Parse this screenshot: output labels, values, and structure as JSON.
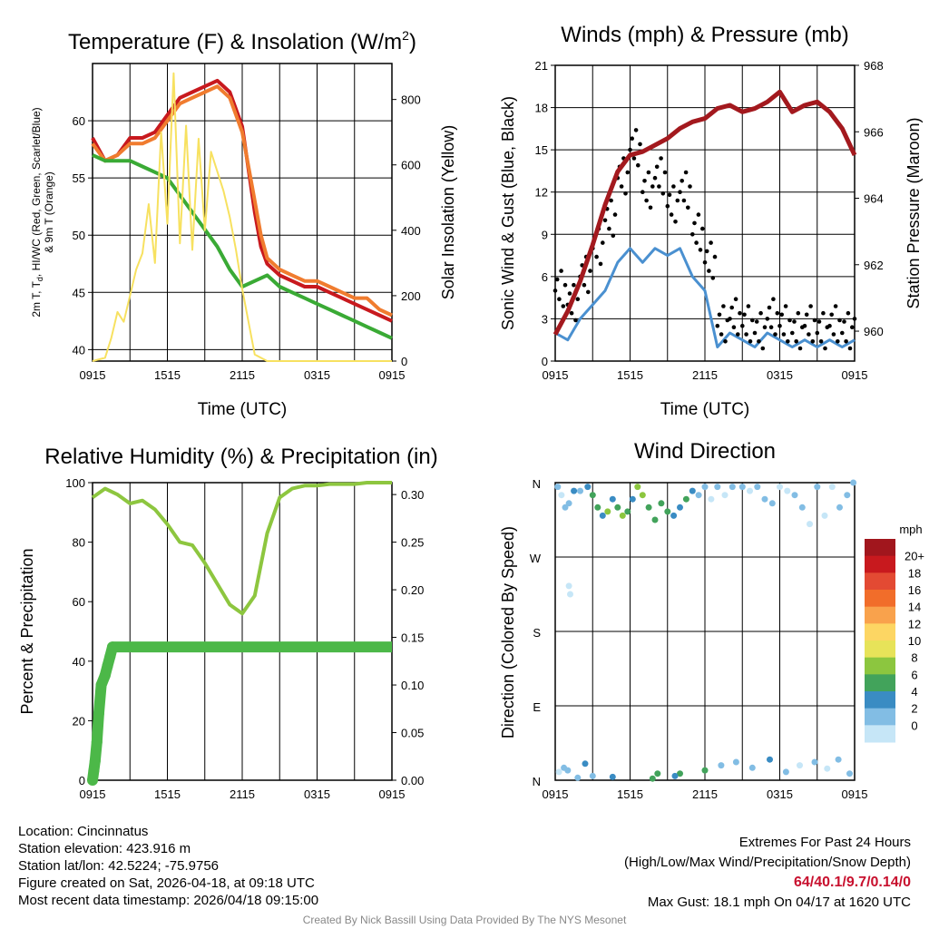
{
  "chart_data": [
    {
      "type": "line",
      "title": "Temperature (F) & Insolation (W/m",
      "title_superscript": "2",
      "title_close": ")",
      "xlabel": "Time (UTC)",
      "ylabel_left_lines": [
        "2m T, T",
        "d",
        ", HI/WC (Red, Green, Scarlet/Blue)",
        "& 9m T (Orange)"
      ],
      "ylabel_right": "Solar Insolation (Yellow)",
      "x_ticks": [
        "0915",
        "1515",
        "2115",
        "0315",
        "0915"
      ],
      "ylim": [
        39,
        65
      ],
      "y_ticks": [
        40,
        45,
        50,
        55,
        60
      ],
      "y2lim": [
        0,
        910
      ],
      "y2_ticks": [
        0,
        200,
        400,
        600,
        800
      ],
      "series": [
        {
          "name": "2m T",
          "color": "#c8191e",
          "axis": "left",
          "x": [
            0,
            1,
            2,
            3,
            4,
            5,
            6,
            7,
            8,
            9,
            10,
            11,
            12,
            13,
            13.5,
            14,
            15,
            16,
            17,
            18,
            19,
            20,
            21,
            22,
            23,
            24
          ],
          "y": [
            58.5,
            56.5,
            57,
            58.5,
            58.5,
            59,
            60.5,
            62,
            62.5,
            63,
            63.5,
            62.5,
            59.5,
            52,
            49,
            47.5,
            46.5,
            46,
            45.5,
            45.5,
            45,
            44.5,
            44,
            43.5,
            43,
            42.5
          ]
        },
        {
          "name": "9m T",
          "color": "#f07c2f",
          "axis": "left",
          "x": [
            0,
            1,
            2,
            3,
            4,
            5,
            6,
            7,
            8,
            9,
            10,
            11,
            12,
            13,
            13.5,
            14,
            15,
            16,
            17,
            18,
            19,
            20,
            21,
            22,
            23,
            24
          ],
          "y": [
            58,
            56.5,
            57,
            58,
            58,
            58.5,
            60,
            61.5,
            62,
            62.5,
            63,
            62,
            59,
            53,
            50,
            48,
            47,
            46.5,
            46,
            46,
            45.5,
            45,
            44.5,
            44.5,
            43.5,
            43
          ]
        },
        {
          "name": "Td",
          "color": "#3aaa35",
          "axis": "left",
          "x": [
            0,
            1,
            2,
            3,
            4,
            5,
            6,
            7,
            8,
            9,
            10,
            11,
            12,
            13,
            14,
            15,
            16,
            17,
            18,
            19,
            20,
            21,
            22,
            23,
            24
          ],
          "y": [
            57,
            56.5,
            56.5,
            56.5,
            56,
            55.5,
            55,
            53.5,
            52,
            50.5,
            49,
            47,
            45.5,
            46,
            46.5,
            45.5,
            45,
            44.5,
            44,
            43.5,
            43,
            42.5,
            42,
            41.5,
            41
          ]
        },
        {
          "name": "Solar Insolation",
          "color": "#f7e160",
          "axis": "right",
          "x": [
            0,
            1,
            1.5,
            2,
            2.5,
            3,
            3.5,
            4,
            4.5,
            5,
            5.5,
            6,
            6.5,
            7,
            7.5,
            8,
            8.5,
            9,
            9.5,
            10,
            10.5,
            11,
            11.5,
            12,
            12.5,
            13,
            14,
            24
          ],
          "y": [
            0,
            10,
            70,
            150,
            120,
            200,
            280,
            330,
            480,
            300,
            700,
            420,
            880,
            360,
            720,
            340,
            680,
            400,
            640,
            580,
            520,
            440,
            340,
            220,
            120,
            20,
            0,
            0
          ]
        }
      ]
    },
    {
      "type": "line",
      "title": "Winds (mph) & Pressure (mb)",
      "xlabel": "Time (UTC)",
      "ylabel_left": "Sonic Wind & Gust (Blue, Black)",
      "ylabel_right": "Station Pressure (Maroon)",
      "x_ticks": [
        "0915",
        "1515",
        "2115",
        "0315",
        "0915"
      ],
      "ylim": [
        0,
        21
      ],
      "y_ticks": [
        0,
        3,
        6,
        9,
        12,
        15,
        18,
        21
      ],
      "y2lim": [
        959.1,
        968
      ],
      "y2_ticks": [
        960,
        962,
        964,
        966,
        968
      ],
      "series": [
        {
          "name": "Sonic Wind",
          "color": "#4a90d0",
          "axis": "left",
          "x": [
            0,
            1,
            2,
            3,
            4,
            5,
            6,
            7,
            8,
            9,
            10,
            11,
            12,
            13,
            14,
            15,
            16,
            17,
            18,
            19,
            20,
            21,
            22,
            23,
            24
          ],
          "y": [
            2,
            1.5,
            3,
            4,
            5,
            7,
            8,
            7,
            8,
            7.5,
            8,
            6,
            5,
            1,
            2,
            1.5,
            1,
            2,
            1.5,
            1,
            1.5,
            1,
            1.5,
            1,
            1.5
          ]
        },
        {
          "name": "Gust",
          "color": "#000000",
          "axis": "left",
          "x": [
            0,
            1,
            2,
            3,
            4,
            5,
            6,
            7,
            8,
            9,
            10,
            11,
            12,
            13,
            14,
            15,
            16,
            17,
            18,
            19,
            20,
            21,
            22,
            23,
            24
          ],
          "y": [
            5,
            4,
            6,
            8,
            10,
            13,
            15,
            12,
            13,
            11,
            12,
            9,
            7,
            2.5,
            3,
            2.5,
            2,
            3,
            2.5,
            2,
            2.5,
            2,
            2.5,
            2,
            3
          ]
        },
        {
          "name": "Station Pressure",
          "color": "#a3191e",
          "axis": "right",
          "x": [
            0,
            1,
            2,
            3,
            4,
            5,
            6,
            7,
            8,
            9,
            10,
            11,
            12,
            13,
            14,
            15,
            16,
            17,
            18,
            19,
            20,
            21,
            22,
            23,
            24
          ],
          "y": [
            959.9,
            960.6,
            961.5,
            962.6,
            963.8,
            964.8,
            965.3,
            965.4,
            965.6,
            965.8,
            966.1,
            966.3,
            966.4,
            966.7,
            966.8,
            966.6,
            966.7,
            966.9,
            967.2,
            966.6,
            966.8,
            966.9,
            966.6,
            966.1,
            965.3
          ]
        }
      ]
    },
    {
      "type": "line",
      "title": "Relative Humidity (%) & Precipitation (in)",
      "xlabel": "",
      "ylabel_left": "Percent & Precipitation",
      "x_ticks": [
        "0915",
        "1515",
        "2115",
        "0315",
        "0915"
      ],
      "ylim": [
        0,
        100
      ],
      "y_ticks": [
        0,
        20,
        40,
        60,
        80,
        100
      ],
      "y2lim": [
        0,
        0.3125
      ],
      "y2_ticks": [
        "0.00",
        "0.05",
        "0.10",
        "0.15",
        "0.20",
        "0.25",
        "0.30"
      ],
      "series": [
        {
          "name": "Relative Humidity",
          "color": "#8dc63f",
          "axis": "left",
          "x": [
            0,
            1,
            2,
            3,
            4,
            5,
            6,
            7,
            8,
            9,
            10,
            11,
            12,
            13,
            14,
            15,
            16,
            17,
            18,
            19,
            20,
            21,
            22,
            23,
            24
          ],
          "y": [
            95,
            98,
            96,
            93,
            94,
            91,
            86,
            80,
            79,
            73,
            66,
            59,
            56,
            62,
            83,
            95,
            98,
            99,
            99,
            99.5,
            99.5,
            99.5,
            100,
            100,
            100
          ]
        },
        {
          "name": "Precipitation",
          "color": "#4cb848",
          "axis": "right",
          "x": [
            0,
            0.1,
            0.2,
            0.35,
            0.5,
            0.7,
            1.0,
            1.2,
            1.4,
            1.6,
            24
          ],
          "y": [
            0,
            0.01,
            0.02,
            0.04,
            0.07,
            0.1,
            0.11,
            0.12,
            0.13,
            0.14,
            0.14
          ]
        }
      ]
    },
    {
      "type": "scatter",
      "title": "Wind Direction",
      "ylabel_left": "Direction (Colored By Speed)",
      "x_ticks": [
        "0915",
        "1515",
        "2115",
        "0315",
        "0915"
      ],
      "y_ticks": [
        "N",
        "E",
        "S",
        "W",
        "N"
      ],
      "ylim": [
        0,
        360
      ],
      "colorbar_title": "mph",
      "colorbar_labels": [
        "20+",
        "18",
        "16",
        "14",
        "12",
        "10",
        "8",
        "6",
        "4",
        "2",
        "0"
      ],
      "colorbar_colors": [
        "#a1161d",
        "#c8191e",
        "#e34a33",
        "#f16d2a",
        "#f9a24c",
        "#fdd663",
        "#e7e359",
        "#8cc63f",
        "#42a35b",
        "#3a8cc3",
        "#82bde4",
        "#c6e6f7"
      ],
      "points": {
        "x": [
          0.2,
          0.5,
          0.8,
          1.1,
          1.5,
          2,
          2.6,
          3,
          3.4,
          3.8,
          4.2,
          4.6,
          5,
          5.4,
          5.8,
          6.2,
          6.6,
          7,
          7.5,
          8,
          8.5,
          9,
          9.5,
          10,
          10.5,
          11,
          11.5,
          12,
          12.5,
          13,
          13.6,
          14.2,
          15,
          15.6,
          16.2,
          16.8,
          17.4,
          18,
          18.6,
          19.2,
          19.8,
          20.4,
          21,
          21.6,
          22.2,
          22.8,
          23.4,
          23.9,
          1,
          3,
          10,
          12,
          0.3,
          0.7,
          1.8,
          2.4,
          4.6,
          7.8,
          8.2,
          9.6,
          13.3,
          14.5,
          15.8,
          17.2,
          18.5,
          19.6,
          20.8,
          21.8,
          22.7,
          23.6,
          1.1,
          1.2
        ],
        "y": [
          355,
          345,
          330,
          335,
          350,
          350,
          355,
          345,
          330,
          320,
          325,
          340,
          330,
          320,
          325,
          340,
          355,
          345,
          330,
          315,
          335,
          325,
          320,
          330,
          340,
          350,
          345,
          355,
          340,
          355,
          345,
          355,
          355,
          350,
          355,
          340,
          335,
          355,
          350,
          345,
          330,
          310,
          355,
          320,
          355,
          330,
          345,
          360,
          12,
          5,
          8,
          12,
          10,
          15,
          3,
          20,
          4,
          2,
          8,
          5,
          18,
          22,
          15,
          25,
          10,
          18,
          22,
          14,
          25,
          8,
          235,
          225
        ],
        "speed": [
          2,
          1,
          3,
          2,
          4,
          3,
          4,
          6,
          7,
          5,
          8,
          4,
          6,
          8,
          7,
          5,
          9,
          8,
          7,
          6,
          7,
          6,
          5,
          4,
          6,
          5,
          3,
          2,
          1,
          2,
          1,
          2,
          3,
          1,
          2,
          3,
          2,
          1,
          1,
          2,
          3,
          1,
          2,
          0,
          1,
          2,
          3,
          2,
          2,
          3,
          6,
          7,
          1,
          2,
          3,
          4,
          5,
          7,
          6,
          5,
          2,
          3,
          2,
          4,
          3,
          1,
          2,
          1,
          3,
          2,
          1,
          1
        ]
      }
    }
  ],
  "info_left": [
    "Location: Cincinnatus",
    "Station elevation: 423.916 m",
    "Station lat/lon: 42.5224; -75.9756",
    "Figure created on Sat, 2026-04-18, at 09:18 UTC",
    "Most recent data timestamp: 2026/04/18 09:15:00"
  ],
  "extremes": {
    "title": "Extremes For Past 24 Hours",
    "subtitle": "(High/Low/Max Wind/Precipitation/Snow Depth)",
    "values": "64/40.1/9.7/0.14/0",
    "max_gust": "Max Gust: 18.1 mph On 04/17 at 1620 UTC"
  },
  "credit": "Created By Nick Bassill Using Data Provided By The NYS Mesonet"
}
